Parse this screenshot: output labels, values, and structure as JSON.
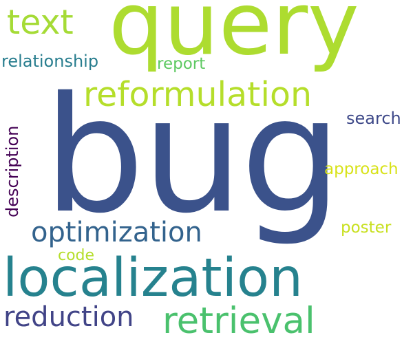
{
  "words": {
    "bug": {
      "text": "bug",
      "color": "#3b528b"
    },
    "query": {
      "text": "query",
      "color": "#addc30"
    },
    "text": {
      "text": "text",
      "color": "#a5db36"
    },
    "reformulation": {
      "text": "reformulation",
      "color": "#b5de2b"
    },
    "relationship": {
      "text": "relationship",
      "color": "#287d8e"
    },
    "report": {
      "text": "report",
      "color": "#5ec962"
    },
    "search": {
      "text": "search",
      "color": "#3e4989"
    },
    "approach": {
      "text": "approach",
      "color": "#d8e219"
    },
    "poster": {
      "text": "poster",
      "color": "#c8e020"
    },
    "optimization": {
      "text": "optimization",
      "color": "#33638d"
    },
    "code": {
      "text": "code",
      "color": "#b5de2b"
    },
    "localization": {
      "text": "localization",
      "color": "#26828e"
    },
    "reduction": {
      "text": "reduction",
      "color": "#414487"
    },
    "retrieval": {
      "text": "retrieval",
      "color": "#4ac16d"
    },
    "description": {
      "text": "description",
      "color": "#440154"
    }
  }
}
